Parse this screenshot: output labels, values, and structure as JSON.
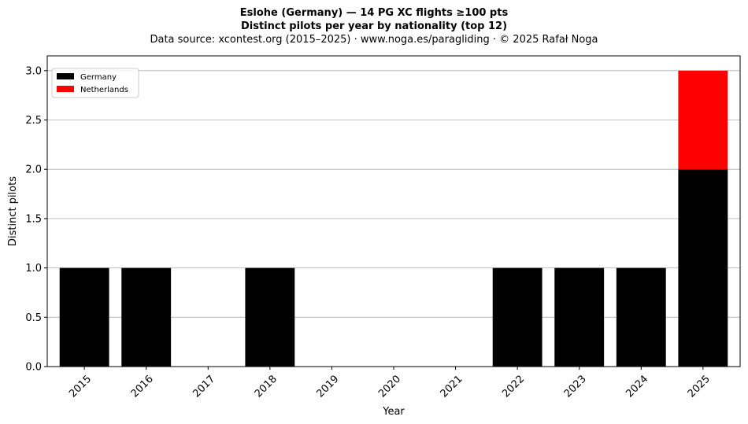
{
  "chart_data": {
    "type": "bar",
    "stacked": true,
    "title": "Eslohe (Germany)  —  14 PG XC flights ≥100 pts",
    "title_line2": "Distinct pilots per year by nationality (top 12)",
    "subtitle": "Data source: xcontest.org (2015–2025)  ·  www.noga.es/paragliding  ·  © 2025 Rafał Noga",
    "xlabel": "Year",
    "ylabel": "Distinct pilots",
    "categories": [
      "2015",
      "2016",
      "2017",
      "2018",
      "2019",
      "2020",
      "2021",
      "2022",
      "2023",
      "2024",
      "2025"
    ],
    "series": [
      {
        "name": "Germany",
        "color": "#000000",
        "values": [
          1,
          1,
          0,
          1,
          0,
          0,
          0,
          1,
          1,
          1,
          2
        ]
      },
      {
        "name": "Netherlands",
        "color": "#ff0000",
        "values": [
          0,
          0,
          0,
          0,
          0,
          0,
          0,
          0,
          0,
          0,
          1
        ]
      }
    ],
    "ylim": [
      0,
      3.15
    ],
    "yticks": [
      "0.0",
      "0.5",
      "1.0",
      "1.5",
      "2.0",
      "2.5",
      "3.0"
    ],
    "grid": "horizontal",
    "legend_position": "top-left"
  }
}
